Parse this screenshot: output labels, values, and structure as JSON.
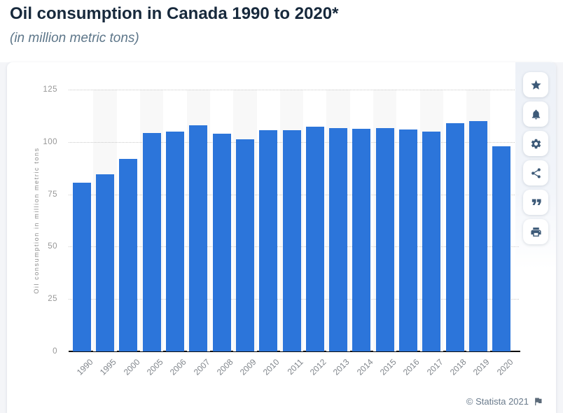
{
  "header": {
    "title": "Oil consumption in Canada 1990 to 2020*",
    "subtitle": "(in million metric tons)"
  },
  "footer": {
    "attribution": "© Statista 2021",
    "flag_icon": "flag-icon"
  },
  "sidebar": {
    "buttons": [
      {
        "icon": "star"
      },
      {
        "icon": "bell"
      },
      {
        "icon": "gear"
      },
      {
        "icon": "share"
      },
      {
        "icon": "quote"
      },
      {
        "icon": "print"
      }
    ]
  },
  "chart_data": {
    "type": "bar",
    "title": "Oil consumption in Canada 1990 to 2020*",
    "subtitle": "(in million metric tons)",
    "categories": [
      "1990",
      "1995",
      "2000",
      "2005",
      "2006",
      "2007",
      "2008",
      "2009",
      "2010",
      "2011",
      "2012",
      "2013",
      "2014",
      "2015",
      "2016",
      "2017",
      "2018",
      "2019",
      "2020"
    ],
    "values": [
      80.4,
      84.7,
      91.9,
      104.4,
      104.9,
      108,
      104,
      101.2,
      105.7,
      105.7,
      107.2,
      106.6,
      106.2,
      106.5,
      105.8,
      105.1,
      108.9,
      110,
      97.8
    ],
    "xlabel": "",
    "ylabel": "Oil consumption in million metric tons",
    "ylim": [
      0,
      125
    ],
    "yticks": [
      0,
      25,
      50,
      75,
      100,
      125
    ],
    "grid": "horizontal dotted",
    "legend": "none",
    "bar_color": "#2c75da",
    "band_color": "#f8f8f8",
    "gridline_color": "#c9c9c9",
    "tick_color": "#979797",
    "xlabel_color": "#81868c"
  }
}
